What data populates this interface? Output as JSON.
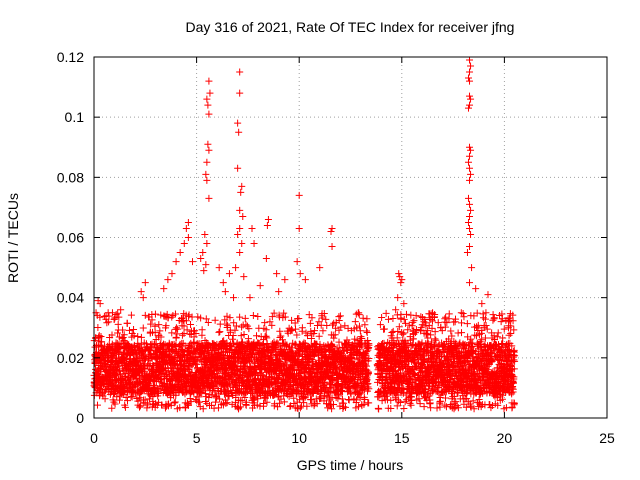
{
  "chart_data": {
    "type": "scatter",
    "title": "Day 316 of 2021, Rate Of TEC Index for receiver jfng",
    "xlabel": "GPS time / hours",
    "ylabel": "ROTI / TECUs",
    "xlim": [
      0,
      25
    ],
    "ylim": [
      0,
      0.12
    ],
    "x_ticks": [
      0,
      5,
      10,
      15,
      20,
      25
    ],
    "x_tick_labels": [
      "0",
      "5",
      "10",
      "15",
      "20",
      "25"
    ],
    "y_ticks": [
      0,
      0.02,
      0.04,
      0.06,
      0.08,
      0.1,
      0.12
    ],
    "y_tick_labels": [
      "0",
      "0.02",
      "0.04",
      "0.06",
      "0.08",
      "0.1",
      "0.12"
    ],
    "grid": true,
    "marker": "+",
    "color": "#ff0000",
    "bulk_band": {
      "x_range": [
        0,
        20.5
      ],
      "typical_low": 0.008,
      "typical_high": 0.025,
      "min": 0.003,
      "gap_hours": [
        13.4,
        13.8
      ]
    },
    "series": [
      {
        "name": "ROTI",
        "points": [
          [
            5.6,
            0.112
          ],
          [
            5.5,
            0.106
          ],
          [
            5.55,
            0.104
          ],
          [
            5.6,
            0.101
          ],
          [
            5.65,
            0.108
          ],
          [
            5.55,
            0.091
          ],
          [
            5.6,
            0.089
          ],
          [
            5.5,
            0.085
          ],
          [
            5.45,
            0.081
          ],
          [
            5.5,
            0.079
          ],
          [
            5.6,
            0.073
          ],
          [
            5.4,
            0.061
          ],
          [
            5.5,
            0.058
          ],
          [
            5.3,
            0.055
          ],
          [
            5.2,
            0.053
          ],
          [
            5.45,
            0.051
          ],
          [
            5.35,
            0.049
          ],
          [
            7.1,
            0.115
          ],
          [
            7.1,
            0.108
          ],
          [
            7.0,
            0.098
          ],
          [
            7.05,
            0.095
          ],
          [
            7.0,
            0.083
          ],
          [
            7.2,
            0.077
          ],
          [
            7.15,
            0.075
          ],
          [
            7.1,
            0.069
          ],
          [
            7.25,
            0.067
          ],
          [
            7.1,
            0.063
          ],
          [
            7.0,
            0.061
          ],
          [
            7.2,
            0.058
          ],
          [
            7.1,
            0.055
          ],
          [
            6.9,
            0.05
          ],
          [
            7.3,
            0.047
          ],
          [
            8.5,
            0.066
          ],
          [
            8.45,
            0.064
          ],
          [
            8.4,
            0.053
          ],
          [
            7.7,
            0.063
          ],
          [
            7.8,
            0.058
          ],
          [
            10.0,
            0.074
          ],
          [
            10.0,
            0.063
          ],
          [
            9.9,
            0.052
          ],
          [
            10.05,
            0.048
          ],
          [
            10.3,
            0.046
          ],
          [
            11.0,
            0.05
          ],
          [
            11.6,
            0.063
          ],
          [
            11.55,
            0.062
          ],
          [
            11.6,
            0.057
          ],
          [
            4.6,
            0.065
          ],
          [
            4.5,
            0.063
          ],
          [
            4.6,
            0.06
          ],
          [
            4.4,
            0.058
          ],
          [
            4.2,
            0.055
          ],
          [
            4.0,
            0.052
          ],
          [
            3.8,
            0.048
          ],
          [
            4.8,
            0.052
          ],
          [
            3.6,
            0.046
          ],
          [
            3.4,
            0.043
          ],
          [
            2.5,
            0.045
          ],
          [
            2.3,
            0.042
          ],
          [
            2.4,
            0.04
          ],
          [
            1.3,
            0.036
          ],
          [
            0.2,
            0.039
          ],
          [
            0.3,
            0.038
          ],
          [
            0.1,
            0.035
          ],
          [
            0.9,
            0.035
          ],
          [
            6.1,
            0.05
          ],
          [
            6.3,
            0.045
          ],
          [
            6.6,
            0.048
          ],
          [
            6.4,
            0.042
          ],
          [
            8.9,
            0.048
          ],
          [
            9.3,
            0.046
          ],
          [
            9.0,
            0.042
          ],
          [
            8.1,
            0.044
          ],
          [
            6.8,
            0.04
          ],
          [
            7.6,
            0.04
          ],
          [
            12.9,
            0.035
          ],
          [
            13.3,
            0.033
          ],
          [
            13.2,
            0.031
          ],
          [
            14.9,
            0.047
          ],
          [
            14.85,
            0.048
          ],
          [
            14.95,
            0.045
          ],
          [
            15.0,
            0.046
          ],
          [
            14.8,
            0.04
          ],
          [
            14.7,
            0.036
          ],
          [
            15.1,
            0.038
          ],
          [
            16.0,
            0.031
          ],
          [
            16.5,
            0.035
          ],
          [
            16.9,
            0.03
          ],
          [
            17.3,
            0.033
          ],
          [
            17.6,
            0.032
          ],
          [
            17.9,
            0.035
          ],
          [
            18.3,
            0.119
          ],
          [
            18.35,
            0.117
          ],
          [
            18.3,
            0.115
          ],
          [
            18.25,
            0.113
          ],
          [
            18.3,
            0.112
          ],
          [
            18.3,
            0.107
          ],
          [
            18.35,
            0.106
          ],
          [
            18.3,
            0.104
          ],
          [
            18.25,
            0.103
          ],
          [
            18.3,
            0.09
          ],
          [
            18.35,
            0.089
          ],
          [
            18.3,
            0.087
          ],
          [
            18.25,
            0.085
          ],
          [
            18.3,
            0.083
          ],
          [
            18.35,
            0.081
          ],
          [
            18.3,
            0.079
          ],
          [
            18.25,
            0.073
          ],
          [
            18.3,
            0.071
          ],
          [
            18.35,
            0.069
          ],
          [
            18.3,
            0.067
          ],
          [
            18.25,
            0.065
          ],
          [
            18.3,
            0.063
          ],
          [
            18.35,
            0.061
          ],
          [
            18.3,
            0.057
          ],
          [
            18.2,
            0.055
          ],
          [
            18.4,
            0.05
          ],
          [
            18.3,
            0.045
          ],
          [
            18.6,
            0.043
          ],
          [
            18.9,
            0.038
          ],
          [
            19.2,
            0.041
          ],
          [
            19.1,
            0.035
          ],
          [
            19.5,
            0.033
          ],
          [
            19.9,
            0.033
          ],
          [
            20.2,
            0.03
          ]
        ]
      }
    ]
  }
}
